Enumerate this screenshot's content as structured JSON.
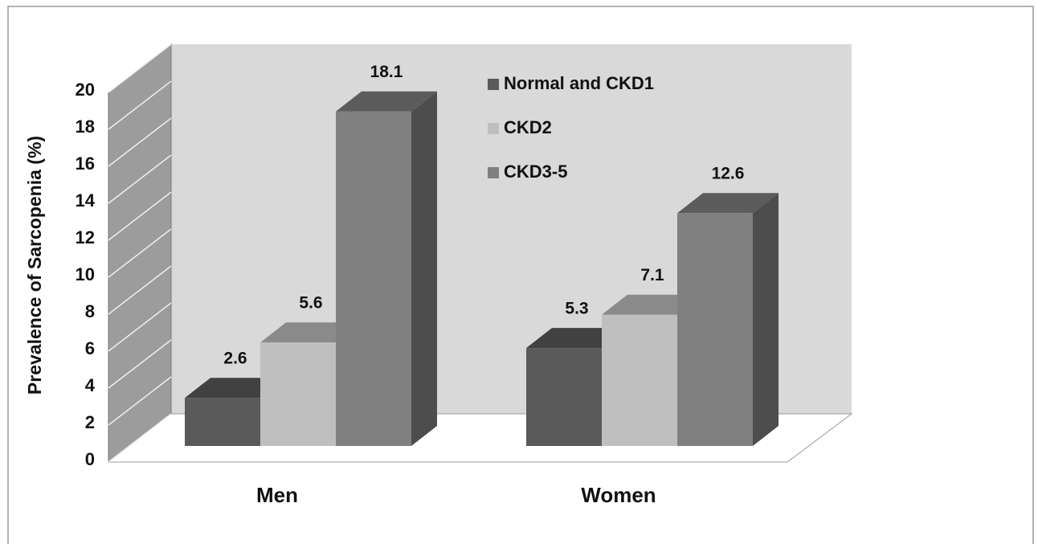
{
  "chart_data": {
    "type": "bar3d",
    "y_label": "Prevalence of Sarcopenia (%)",
    "categories": [
      "Men",
      "Women"
    ],
    "series": [
      {
        "name": "Normal and CKD1",
        "color": "#5a5a5a",
        "values": [
          2.6,
          5.3
        ]
      },
      {
        "name": "CKD2",
        "color": "#bfbfbf",
        "values": [
          5.6,
          7.1
        ]
      },
      {
        "name": "CKD3-5",
        "color": "#808080",
        "values": [
          18.1,
          12.6
        ]
      }
    ],
    "ylim": [
      0,
      20
    ],
    "yticks": [
      0,
      2,
      4,
      6,
      8,
      10,
      12,
      14,
      16,
      18,
      20
    ],
    "grid": true,
    "legend": "top-right"
  }
}
